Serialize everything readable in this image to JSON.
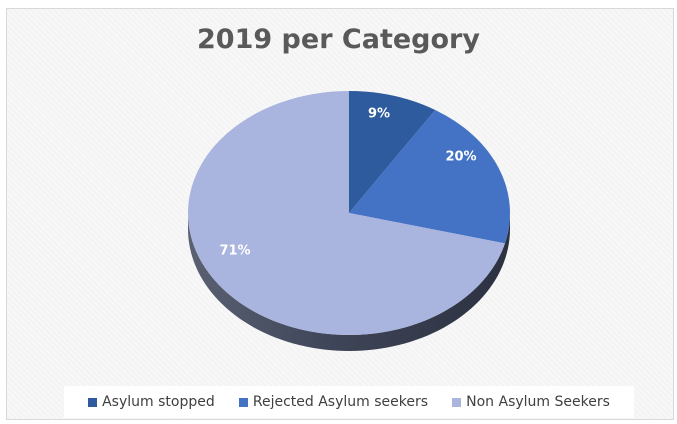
{
  "chart_data": {
    "type": "pie",
    "title": "2019 per Category",
    "categories": [
      "Asylum stopped",
      "Rejected Asylum seekers",
      "Non Asylum Seekers"
    ],
    "values": [
      9,
      20,
      71
    ],
    "labels": [
      "9%",
      "20%",
      "71%"
    ],
    "colors": [
      "#2e5a9e",
      "#4472c4",
      "#a9b4df"
    ],
    "legend": "bottom",
    "style": "3d"
  }
}
